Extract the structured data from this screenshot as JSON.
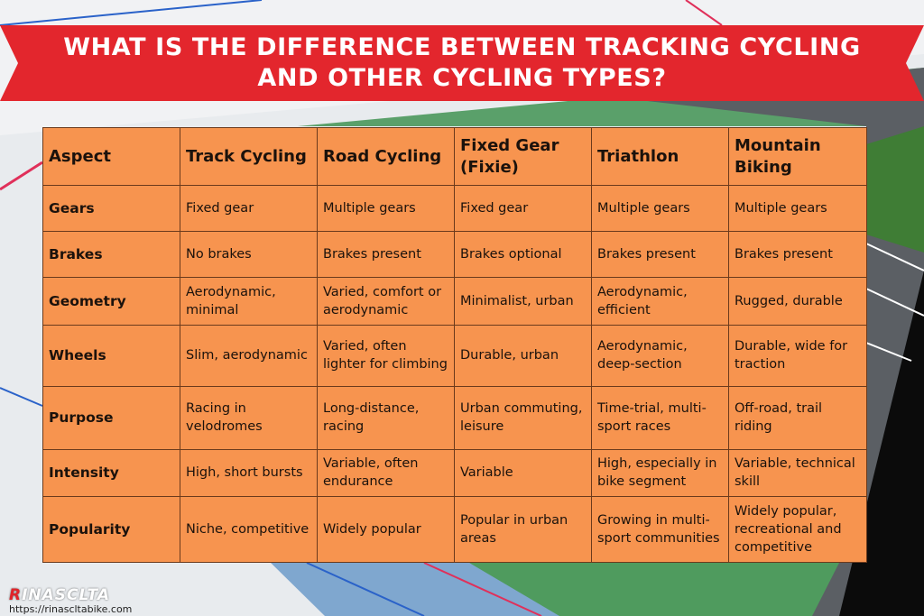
{
  "title": "WHAT IS THE DIFFERENCE BETWEEN TRACKING CYCLING AND OTHER CYCLING TYPES?",
  "colors": {
    "banner": "#e3262d",
    "table": "#f7944f",
    "border": "#6b3a1c"
  },
  "table": {
    "headers": [
      "Aspect",
      "Track Cycling",
      "Road Cycling",
      "Fixed Gear (Fixie)",
      "Triathlon",
      "Mountain Biking"
    ],
    "rows": [
      [
        "Gears",
        "Fixed gear",
        "Multiple gears",
        "Fixed gear",
        "Multiple gears",
        "Multiple gears"
      ],
      [
        "Brakes",
        "No brakes",
        "Brakes present",
        "Brakes optional",
        "Brakes present",
        "Brakes present"
      ],
      [
        "Geometry",
        "Aerodynamic, minimal",
        "Varied, comfort or aerodynamic",
        "Minimalist, urban",
        "Aerodynamic, efficient",
        "Rugged, durable"
      ],
      [
        "Wheels",
        "Slim, aerodynamic",
        "Varied, often lighter for climbing",
        "Durable, urban",
        "Aerodynamic, deep-section",
        "Durable, wide for traction"
      ],
      [
        "Purpose",
        "Racing in velodromes",
        "Long-distance, racing",
        "Urban commuting, leisure",
        "Time-trial, multi-sport races",
        "Off-road, trail riding"
      ],
      [
        "Intensity",
        "High, short bursts",
        "Variable, often endurance",
        "Variable",
        "High, especially in bike segment",
        "Variable, technical skill"
      ],
      [
        "Popularity",
        "Niche, competitive",
        "Widely popular",
        "Popular in urban areas",
        "Growing in multi-sport communities",
        "Widely popular, recreational and competitive"
      ]
    ]
  },
  "brand": {
    "logo_r": "R",
    "logo_rest": "INASCLTA",
    "url": "https://rinascltabike.com"
  }
}
